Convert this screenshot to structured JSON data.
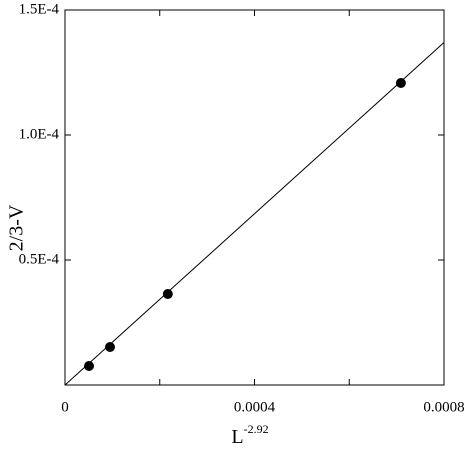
{
  "chart_data": {
    "type": "scatter",
    "xlabel": "L",
    "xlabel_sup": "-2.92",
    "ylabel": "2/3-V",
    "xlim": [
      0,
      0.0008
    ],
    "ylim": [
      0,
      0.00015
    ],
    "xticks": [
      0,
      0.0004,
      0.0008
    ],
    "xminor_ticks": [
      0.0002,
      0.0006
    ],
    "yticks": [
      {
        "value": 5e-05,
        "label": "0.5E-4"
      },
      {
        "value": 0.0001,
        "label": "1.0E-4"
      },
      {
        "value": 0.00015,
        "label": "1.5E-4"
      }
    ],
    "points": {
      "x": [
        5.07e-05,
        9.5e-05,
        0.000217,
        0.000709
      ],
      "y": [
        7.6e-06,
        1.52e-05,
        3.64e-05,
        0.0001208
      ],
      "color": "#000000"
    },
    "fit_line": {
      "x": [
        0,
        0.0008
      ],
      "y": [
        0,
        0.000137
      ],
      "color": "#000000"
    }
  }
}
